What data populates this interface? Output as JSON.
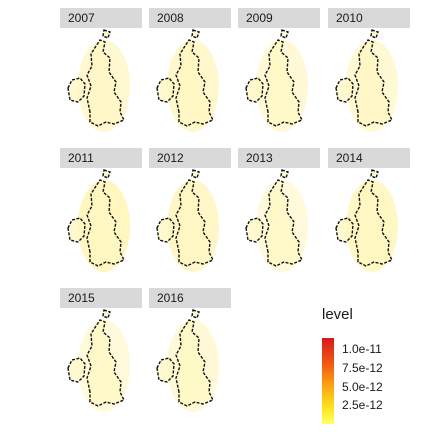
{
  "chart_data": {
    "type": "heatmap",
    "facet_var": "year",
    "facets": [
      "2007",
      "2008",
      "2009",
      "2010",
      "2011",
      "2012",
      "2013",
      "2014",
      "2015",
      "2016"
    ],
    "intensity": [
      0.25,
      0.3,
      0.15,
      0.2,
      0.45,
      0.35,
      0.1,
      0.4,
      0.12,
      0.15
    ],
    "legend": {
      "title": "level",
      "ticks": [
        "1.0e-11",
        "7.5e-12",
        "5.0e-12",
        "2.5e-12"
      ],
      "tick_values": [
        1e-11,
        7.5e-12,
        5e-12,
        2.5e-12
      ],
      "range": [
        0,
        1.15e-11
      ],
      "colors": [
        "#d7191c",
        "#f25a12",
        "#fca311",
        "#fee21c",
        "#ffff66"
      ],
      "placement": "bottom-right"
    }
  }
}
